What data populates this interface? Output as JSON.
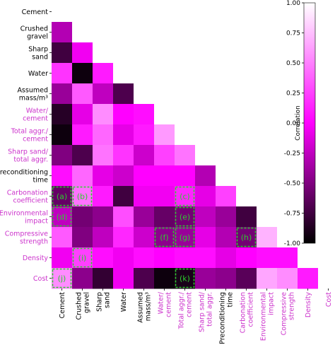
{
  "chart_data": {
    "type": "heatmap",
    "title": "",
    "colorbar": {
      "label": "Correlation",
      "min": -1.0,
      "max": 1.0,
      "ticks": [
        "1.00",
        "0.75",
        "0.50",
        "0.25",
        "0.00",
        "-0.25",
        "-0.50",
        "-0.75",
        "-1.00"
      ],
      "colormap": [
        "#000000",
        "#ff00ff",
        "#ffffff"
      ]
    },
    "label_colors": {
      "input": "#000000",
      "derived": "#cc33cc"
    },
    "variables": [
      {
        "lines": [
          "Cement"
        ],
        "kind": "input"
      },
      {
        "lines": [
          "Crushed",
          "gravel"
        ],
        "kind": "input"
      },
      {
        "lines": [
          "Sharp",
          "sand"
        ],
        "kind": "input"
      },
      {
        "lines": [
          "Water"
        ],
        "kind": "input"
      },
      {
        "lines": [
          "Assumed",
          "mass/m³"
        ],
        "kind": "input"
      },
      {
        "lines": [
          "Water/",
          "cement"
        ],
        "kind": "derived"
      },
      {
        "lines": [
          "Total aggr./",
          "cement"
        ],
        "kind": "derived"
      },
      {
        "lines": [
          "Sharp sand/",
          "total aggr."
        ],
        "kind": "derived"
      },
      {
        "lines": [
          "Preconditioning",
          "time"
        ],
        "kind": "input"
      },
      {
        "lines": [
          "Carbonation",
          "coefficient"
        ],
        "kind": "derived"
      },
      {
        "lines": [
          "Environmental",
          "impact"
        ],
        "kind": "derived"
      },
      {
        "lines": [
          "Compressive",
          "strength"
        ],
        "kind": "derived"
      },
      {
        "lines": [
          "Density"
        ],
        "kind": "derived"
      },
      {
        "lines": [
          "Cost"
        ],
        "kind": "derived"
      }
    ],
    "matrix": [
      [
        1.0
      ],
      [
        -0.3,
        1.0
      ],
      [
        -0.75,
        -0.05,
        1.0
      ],
      [
        0.2,
        -0.95,
        0.1,
        1.0
      ],
      [
        -0.4,
        0.35,
        -0.25,
        -0.7,
        1.0
      ],
      [
        -0.85,
        -0.1,
        0.55,
        0.0,
        0.05,
        1.0
      ],
      [
        -0.95,
        0.1,
        0.4,
        -0.1,
        0.1,
        0.6,
        1.0
      ],
      [
        -0.5,
        -0.7,
        0.45,
        0.2,
        -0.2,
        0.25,
        0.45,
        1.0
      ],
      [
        0.05,
        0.4,
        -0.1,
        -0.2,
        0.0,
        0.0,
        0.0,
        -0.3,
        1.0
      ],
      [
        -0.6,
        0.45,
        0.1,
        -0.75,
        -0.05,
        -0.05,
        0.15,
        -0.1,
        0.25,
        1.0
      ],
      [
        -0.25,
        -0.55,
        -0.45,
        0.3,
        -0.4,
        -0.6,
        -0.55,
        -0.25,
        -0.4,
        -0.75,
        1.0
      ],
      [
        0.35,
        -0.5,
        -0.25,
        0.15,
        -0.2,
        -0.45,
        -0.4,
        -0.1,
        -0.3,
        -0.55,
        0.7,
        1.0
      ],
      [
        -0.05,
        0.25,
        0.05,
        -0.05,
        0.05,
        0.0,
        0.05,
        0.05,
        -0.1,
        0.0,
        0.05,
        0.05,
        1.0
      ],
      [
        0.55,
        -0.45,
        -0.8,
        -0.05,
        -0.7,
        -0.95,
        -0.9,
        -0.4,
        -0.45,
        -0.65,
        0.65,
        0.55,
        0.1,
        1.0
      ]
    ],
    "annotations": [
      {
        "label": "(a)",
        "row": 9,
        "col": 0
      },
      {
        "label": "(b)",
        "row": 9,
        "col": 1
      },
      {
        "label": "(c)",
        "row": 9,
        "col": 6
      },
      {
        "label": "(d)",
        "row": 10,
        "col": 0
      },
      {
        "label": "(e)",
        "row": 10,
        "col": 6
      },
      {
        "label": "(f)",
        "row": 11,
        "col": 5
      },
      {
        "label": "(g)",
        "row": 11,
        "col": 6
      },
      {
        "label": "(h)",
        "row": 11,
        "col": 9
      },
      {
        "label": "(i)",
        "row": 12,
        "col": 1
      },
      {
        "label": "(j)",
        "row": 13,
        "col": 0
      },
      {
        "label": "(k)",
        "row": 13,
        "col": 6
      }
    ]
  }
}
